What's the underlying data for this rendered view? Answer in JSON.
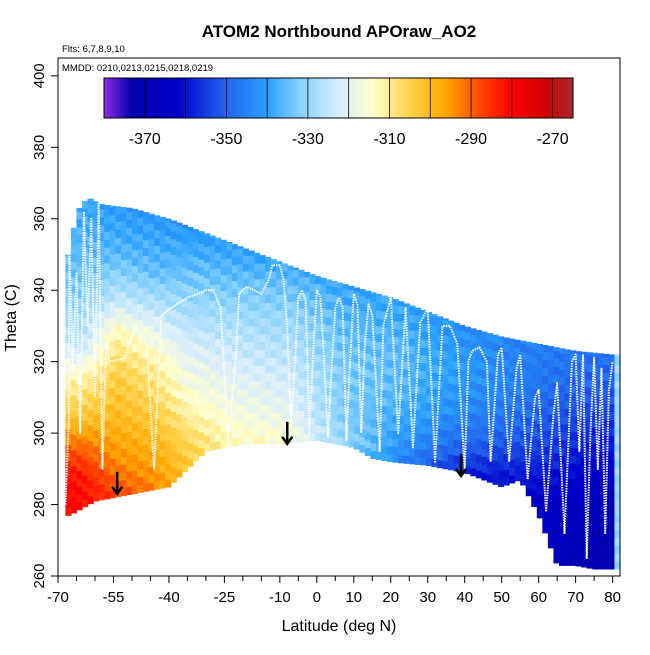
{
  "chart_data": {
    "type": "heatmap",
    "title": "ATOM2 Northbound APOraw_AO2",
    "annotations": {
      "flights": "Flts: 6,7,8,9,10",
      "dates": "MMDD: 0210,0213,0215,0218,0219"
    },
    "xlabel": "Latitude (deg N)",
    "ylabel": "Theta (C)",
    "xlim": [
      -70,
      82
    ],
    "ylim": [
      260,
      405
    ],
    "x_ticks": [
      {
        "value": -70,
        "label": "-70"
      },
      {
        "value": -55,
        "label": "-55"
      },
      {
        "value": -40,
        "label": "-40"
      },
      {
        "value": -25,
        "label": "-25"
      },
      {
        "value": -10,
        "label": "-10"
      },
      {
        "value": 0,
        "label": "0"
      },
      {
        "value": 10,
        "label": "10"
      },
      {
        "value": 20,
        "label": "20"
      },
      {
        "value": 30,
        "label": "30"
      },
      {
        "value": 40,
        "label": "40"
      },
      {
        "value": 50,
        "label": "50"
      },
      {
        "value": 60,
        "label": "60"
      },
      {
        "value": 70,
        "label": "70"
      },
      {
        "value": 80,
        "label": "80"
      }
    ],
    "x_minor_ticks": [
      -65,
      -60,
      -50,
      -45,
      -35,
      -30,
      -20,
      -15,
      -5,
      5,
      15,
      25,
      35,
      45,
      55,
      65,
      75
    ],
    "y_ticks": [
      {
        "value": 260,
        "label": "260"
      },
      {
        "value": 280,
        "label": "280"
      },
      {
        "value": 300,
        "label": "300"
      },
      {
        "value": 320,
        "label": "320"
      },
      {
        "value": 340,
        "label": "340"
      },
      {
        "value": 360,
        "label": "360"
      },
      {
        "value": 380,
        "label": "380"
      },
      {
        "value": 400,
        "label": "400"
      }
    ],
    "colorbar": {
      "min": -380,
      "max": -265,
      "tick_labels": [
        {
          "value": -370,
          "label": "-370"
        },
        {
          "value": -350,
          "label": "-350"
        },
        {
          "value": -330,
          "label": "-330"
        },
        {
          "value": -310,
          "label": "-310"
        },
        {
          "value": -290,
          "label": "-290"
        },
        {
          "value": -270,
          "label": "-270"
        }
      ],
      "dividers": [
        -370,
        -360,
        -350,
        -340,
        -330,
        -320,
        -310,
        -300,
        -290,
        -280,
        -270
      ],
      "stops": [
        {
          "value": -380,
          "color": "#8a2be2"
        },
        {
          "value": -373,
          "color": "#0000aa"
        },
        {
          "value": -362,
          "color": "#0000cc"
        },
        {
          "value": -350,
          "color": "#2266ee"
        },
        {
          "value": -340,
          "color": "#2aa0ff"
        },
        {
          "value": -332,
          "color": "#87d2ff"
        },
        {
          "value": -322,
          "color": "#d8eeff"
        },
        {
          "value": -314,
          "color": "#ffffcc"
        },
        {
          "value": -305,
          "color": "#ffd34a"
        },
        {
          "value": -296,
          "color": "#ffa500"
        },
        {
          "value": -288,
          "color": "#ff4a00"
        },
        {
          "value": -280,
          "color": "#ff0000"
        },
        {
          "value": -272,
          "color": "#d00000"
        },
        {
          "value": -265,
          "color": "#a52a2a"
        }
      ]
    },
    "series": {
      "upper_boundary": [
        [
          -67,
          350
        ],
        [
          -65,
          362
        ],
        [
          -62,
          366
        ],
        [
          -58,
          364
        ],
        [
          -50,
          363
        ],
        [
          -40,
          360
        ],
        [
          -30,
          356
        ],
        [
          -20,
          352
        ],
        [
          -10,
          348
        ],
        [
          0,
          344
        ],
        [
          10,
          341
        ],
        [
          20,
          338
        ],
        [
          30,
          334
        ],
        [
          40,
          330
        ],
        [
          50,
          327
        ],
        [
          60,
          325
        ],
        [
          70,
          323
        ],
        [
          80,
          322
        ]
      ],
      "lower_boundary": [
        [
          -67,
          277
        ],
        [
          -60,
          281
        ],
        [
          -50,
          283
        ],
        [
          -40,
          285
        ],
        [
          -30,
          295
        ],
        [
          -20,
          297
        ],
        [
          -10,
          297
        ],
        [
          0,
          298
        ],
        [
          10,
          296
        ],
        [
          15,
          293
        ],
        [
          20,
          292
        ],
        [
          30,
          291
        ],
        [
          40,
          289
        ],
        [
          50,
          285
        ],
        [
          55,
          287
        ],
        [
          60,
          277
        ],
        [
          65,
          263
        ],
        [
          70,
          263
        ],
        [
          75,
          262
        ],
        [
          80,
          262
        ]
      ],
      "value_bands": [
        {
          "x_start": -68,
          "x_end": -60,
          "profile": [
            [
              277,
              -280
            ],
            [
              288,
              -282
            ],
            [
              296,
              -290
            ],
            [
              305,
              -303
            ],
            [
              315,
              -312
            ],
            [
              325,
              -325
            ],
            [
              340,
              -333
            ],
            [
              360,
              -338
            ]
          ]
        },
        {
          "x_start": -60,
          "x_end": -48,
          "profile": [
            [
              280,
              -285
            ],
            [
              292,
              -294
            ],
            [
              305,
              -300
            ],
            [
              318,
              -305
            ],
            [
              328,
              -312
            ],
            [
              338,
              -325
            ],
            [
              350,
              -336
            ],
            [
              366,
              -342
            ]
          ]
        },
        {
          "x_start": -48,
          "x_end": -40,
          "profile": [
            [
              283,
              -292
            ],
            [
              295,
              -298
            ],
            [
              308,
              -305
            ],
            [
              320,
              -311
            ],
            [
              332,
              -322
            ],
            [
              345,
              -335
            ],
            [
              363,
              -342
            ]
          ]
        },
        {
          "x_start": -40,
          "x_end": -30,
          "profile": [
            [
              285,
              -300
            ],
            [
              298,
              -306
            ],
            [
              310,
              -314
            ],
            [
              322,
              -320
            ],
            [
              334,
              -328
            ],
            [
              346,
              -335
            ],
            [
              360,
              -343
            ]
          ]
        },
        {
          "x_start": -30,
          "x_end": -15,
          "profile": [
            [
              295,
              -312
            ],
            [
              305,
              -316
            ],
            [
              315,
              -320
            ],
            [
              328,
              -326
            ],
            [
              340,
              -333
            ],
            [
              356,
              -342
            ]
          ]
        },
        {
          "x_start": -15,
          "x_end": 0,
          "profile": [
            [
              297,
              -314
            ],
            [
              306,
              -319
            ],
            [
              318,
              -324
            ],
            [
              330,
              -329
            ],
            [
              342,
              -335
            ],
            [
              350,
              -341
            ]
          ]
        },
        {
          "x_start": 0,
          "x_end": 15,
          "profile": [
            [
              296,
              -330
            ],
            [
              306,
              -333
            ],
            [
              318,
              -333
            ],
            [
              330,
              -336
            ],
            [
              344,
              -340
            ]
          ]
        },
        {
          "x_start": 15,
          "x_end": 30,
          "profile": [
            [
              291,
              -345
            ],
            [
              300,
              -340
            ],
            [
              312,
              -336
            ],
            [
              324,
              -336
            ],
            [
              338,
              -340
            ]
          ]
        },
        {
          "x_start": 30,
          "x_end": 45,
          "profile": [
            [
              289,
              -358
            ],
            [
              296,
              -350
            ],
            [
              306,
              -343
            ],
            [
              318,
              -340
            ],
            [
              332,
              -343
            ]
          ]
        },
        {
          "x_start": 45,
          "x_end": 60,
          "profile": [
            [
              280,
              -364
            ],
            [
              290,
              -358
            ],
            [
              300,
              -350
            ],
            [
              312,
              -345
            ],
            [
              326,
              -345
            ]
          ]
        },
        {
          "x_start": 60,
          "x_end": 70,
          "profile": [
            [
              263,
              -368
            ],
            [
              280,
              -365
            ],
            [
              295,
              -356
            ],
            [
              310,
              -350
            ],
            [
              324,
              -346
            ]
          ]
        },
        {
          "x_start": 70,
          "x_end": 80,
          "profile": [
            [
              262,
              -371
            ],
            [
              280,
              -368
            ],
            [
              295,
              -360
            ],
            [
              310,
              -352
            ],
            [
              322,
              -348
            ]
          ]
        }
      ],
      "flight_track": [
        [
          -68,
          280
        ],
        [
          -67,
          305
        ],
        [
          -67,
          355
        ],
        [
          -66,
          318
        ],
        [
          -65,
          345
        ],
        [
          -64,
          300
        ],
        [
          -63,
          362
        ],
        [
          -62,
          330
        ],
        [
          -61,
          360
        ],
        [
          -60,
          310
        ],
        [
          -59,
          365
        ],
        [
          -58,
          290
        ],
        [
          -57,
          325
        ],
        [
          -56,
          320
        ],
        [
          -52,
          321
        ],
        [
          -49,
          330
        ],
        [
          -46,
          325
        ],
        [
          -44,
          290
        ],
        [
          -42,
          333
        ],
        [
          -38,
          336
        ],
        [
          -35,
          338
        ],
        [
          -32,
          339
        ],
        [
          -30,
          340
        ],
        [
          -28,
          340
        ],
        [
          -26,
          335
        ],
        [
          -24,
          298
        ],
        [
          -22,
          320
        ],
        [
          -21,
          339
        ],
        [
          -19,
          341
        ],
        [
          -17,
          340
        ],
        [
          -15,
          339
        ],
        [
          -13,
          343
        ],
        [
          -12,
          347
        ],
        [
          -10,
          347
        ],
        [
          -9,
          343
        ],
        [
          -8,
          330
        ],
        [
          -7,
          302
        ],
        [
          -6,
          318
        ],
        [
          -5,
          338
        ],
        [
          -4,
          340
        ],
        [
          -3,
          337
        ],
        [
          -2,
          300
        ],
        [
          -1,
          322
        ],
        [
          0,
          340
        ],
        [
          1,
          338
        ],
        [
          2,
          320
        ],
        [
          3,
          299
        ],
        [
          4,
          318
        ],
        [
          5,
          335
        ],
        [
          6,
          338
        ],
        [
          7,
          335
        ],
        [
          8,
          298
        ],
        [
          9,
          320
        ],
        [
          10,
          339
        ],
        [
          11,
          336
        ],
        [
          12,
          300
        ],
        [
          13,
          325
        ],
        [
          14,
          336
        ],
        [
          15,
          333
        ],
        [
          17,
          295
        ],
        [
          18,
          330
        ],
        [
          20,
          338
        ],
        [
          22,
          300
        ],
        [
          24,
          335
        ],
        [
          26,
          296
        ],
        [
          28,
          331
        ],
        [
          30,
          335
        ],
        [
          32,
          292
        ],
        [
          34,
          330
        ],
        [
          36,
          330
        ],
        [
          38,
          325
        ],
        [
          40,
          290
        ],
        [
          41,
          320
        ],
        [
          42,
          323
        ],
        [
          44,
          324
        ],
        [
          46,
          320
        ],
        [
          47,
          292
        ],
        [
          49,
          322
        ],
        [
          50,
          324
        ],
        [
          52,
          292
        ],
        [
          54,
          318
        ],
        [
          55,
          322
        ],
        [
          57,
          287
        ],
        [
          59,
          310
        ],
        [
          60,
          312
        ],
        [
          62,
          278
        ],
        [
          64,
          305
        ],
        [
          65,
          314
        ],
        [
          67,
          272
        ],
        [
          69,
          320
        ],
        [
          70,
          322
        ],
        [
          71,
          295
        ],
        [
          72,
          322
        ],
        [
          73,
          265
        ],
        [
          74,
          300
        ],
        [
          75,
          321
        ],
        [
          76,
          290
        ],
        [
          77,
          318
        ],
        [
          78,
          272
        ],
        [
          79,
          312
        ],
        [
          80,
          320
        ]
      ],
      "arrows": [
        [
          -54,
          283
        ],
        [
          -8,
          297
        ],
        [
          39,
          288
        ]
      ]
    }
  }
}
